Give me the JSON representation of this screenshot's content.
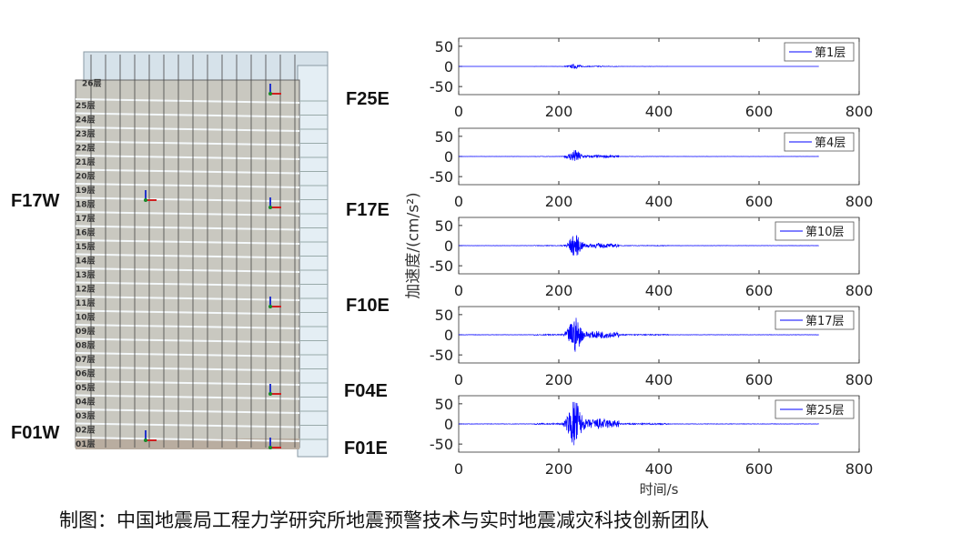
{
  "building": {
    "floor_labels": [
      "01层",
      "02层",
      "03层",
      "04层",
      "05层",
      "06层",
      "07层",
      "08层",
      "09层",
      "10层",
      "11层",
      "12层",
      "13层",
      "14层",
      "15层",
      "16层",
      "17层",
      "18层",
      "19层",
      "20层",
      "21层",
      "22层",
      "23层",
      "24层",
      "25层",
      "26层"
    ],
    "sensor_labels": {
      "F25E": "F25E",
      "F17E": "F17E",
      "F10E": "F10E",
      "F04E": "F04E",
      "F01E": "F01E",
      "F17W": "F17W",
      "F01W": "F01W"
    }
  },
  "chart_data": {
    "type": "line",
    "ylabel": "加速度/(cm/s²)",
    "xlabel": "时间/s",
    "xlim": [
      0,
      800
    ],
    "ylim": [
      -70,
      70
    ],
    "xticks": [
      "0",
      "200",
      "400",
      "600",
      "800"
    ],
    "yticks": [
      "50",
      "0",
      "-50"
    ],
    "grid": false,
    "legend_placement": "top-right",
    "line_color": "#0000ff",
    "record_end_s": 720,
    "strong_motion_peak_s": 232,
    "series": [
      {
        "name": "第1层",
        "peak_abs": 5
      },
      {
        "name": "第4层",
        "peak_abs": 15
      },
      {
        "name": "第10层",
        "peak_abs": 25
      },
      {
        "name": "第17层",
        "peak_abs": 40
      },
      {
        "name": "第25层",
        "peak_abs": 57
      }
    ]
  },
  "caption": "制图：中国地震局工程力学研究所地震预警技术与实时地震减灾科技创新团队"
}
